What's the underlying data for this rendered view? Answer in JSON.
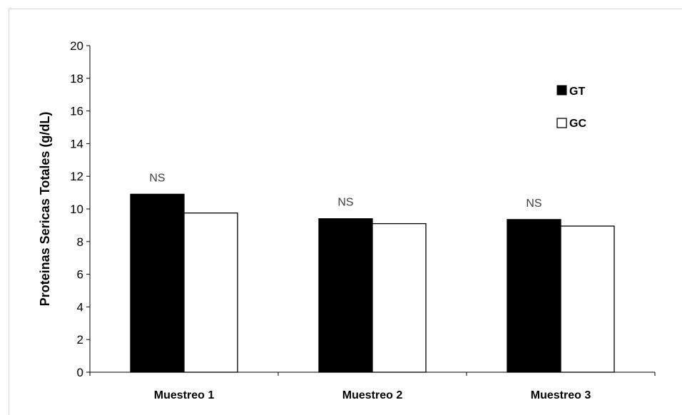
{
  "chart_data": {
    "type": "bar",
    "title": "",
    "xlabel": "",
    "ylabel": "Proteinas Sericas Totales (g/dL)",
    "ylim": [
      0,
      20
    ],
    "yticks": [
      0,
      2,
      4,
      6,
      8,
      10,
      12,
      14,
      16,
      18,
      20
    ],
    "categories": [
      "Muestreo 1",
      "Muestreo 2",
      "Muestreo 3"
    ],
    "series": [
      {
        "name": "GT",
        "color": "#000000",
        "values": [
          10.9,
          9.4,
          9.35
        ]
      },
      {
        "name": "GC",
        "color": "#ffffff",
        "values": [
          9.75,
          9.1,
          8.95
        ]
      }
    ],
    "annotations": [
      "NS",
      "NS",
      "NS"
    ],
    "grid": false,
    "legend_position": "top-right"
  }
}
